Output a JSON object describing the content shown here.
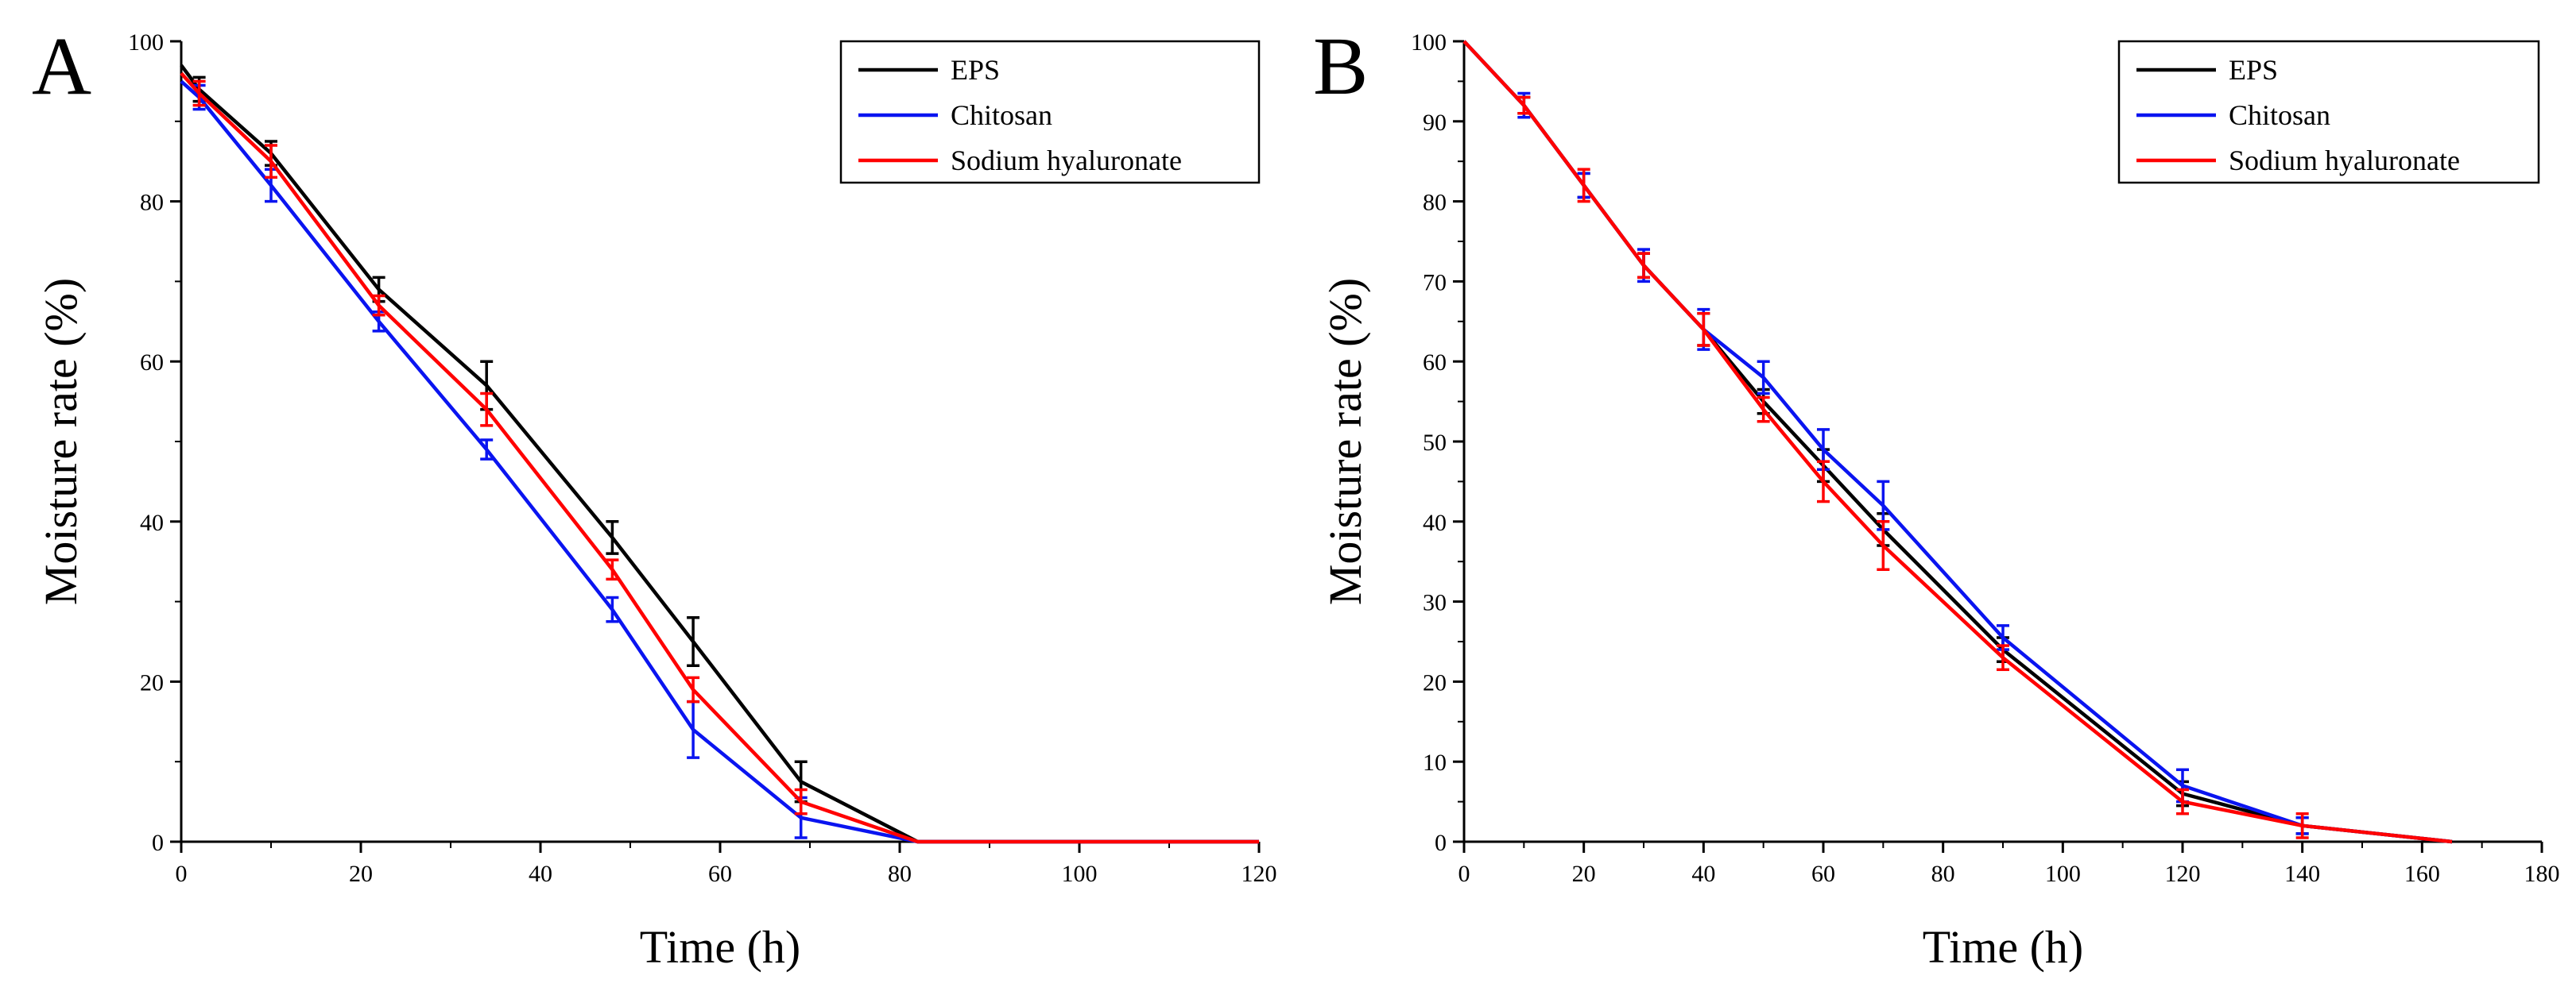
{
  "colors": {
    "EPS": "#000000",
    "Chitosan": "#0a14f0",
    "Sodium hyaluronate": "#ff0000"
  },
  "chart_data": [
    {
      "type": "line",
      "panel": "A",
      "xlabel": "Time (h)",
      "ylabel": "Moisture rate (%)",
      "xlim": [
        0,
        120
      ],
      "ylim": [
        0,
        100
      ],
      "xticks": [
        0,
        20,
        40,
        60,
        80,
        100,
        120
      ],
      "yticks": [
        0,
        20,
        40,
        60,
        80,
        100
      ],
      "legend_position": "top-right",
      "series": [
        {
          "name": "EPS",
          "x": [
            0,
            2,
            10,
            22,
            34,
            48,
            57,
            69,
            82,
            120
          ],
          "y": [
            97,
            94,
            86,
            69,
            57,
            38,
            25,
            7.5,
            0,
            0
          ],
          "err": [
            0,
            1.5,
            1.5,
            1.5,
            3,
            2,
            3,
            2.5,
            0,
            0
          ]
        },
        {
          "name": "Chitosan",
          "x": [
            0,
            2,
            10,
            22,
            34,
            48,
            57,
            69,
            82,
            120
          ],
          "y": [
            95,
            93,
            82,
            65,
            49,
            29,
            14,
            3,
            0,
            0
          ],
          "err": [
            0,
            1.5,
            2,
            1.2,
            1.2,
            1.5,
            3.5,
            2.5,
            0,
            0
          ]
        },
        {
          "name": "Sodium hyaluronate",
          "x": [
            0,
            2,
            10,
            22,
            34,
            48,
            57,
            69,
            82,
            120
          ],
          "y": [
            96,
            93.5,
            85,
            67,
            54,
            34,
            19,
            5,
            0,
            0
          ],
          "err": [
            0,
            1.5,
            2,
            1.2,
            2,
            1.2,
            1.5,
            1.5,
            0,
            0
          ]
        }
      ]
    },
    {
      "type": "line",
      "panel": "B",
      "xlabel": "Time (h)",
      "ylabel": "Moisture rate (%)",
      "xlim": [
        0,
        180
      ],
      "ylim": [
        0,
        100
      ],
      "xticks": [
        0,
        20,
        40,
        60,
        80,
        100,
        120,
        140,
        160,
        180
      ],
      "yticks": [
        0,
        10,
        20,
        30,
        40,
        50,
        60,
        70,
        80,
        90,
        100
      ],
      "legend_position": "top-right",
      "series": [
        {
          "name": "EPS",
          "x": [
            0,
            10,
            20,
            30,
            40,
            50,
            60,
            70,
            90,
            120,
            140,
            165
          ],
          "y": [
            100,
            92,
            82,
            72,
            64,
            55,
            47,
            39,
            24,
            6,
            2,
            0
          ],
          "err": [
            0,
            1,
            1.5,
            1.5,
            2,
            1.5,
            2,
            2,
            1.5,
            1.5,
            1,
            0
          ]
        },
        {
          "name": "Chitosan",
          "x": [
            0,
            10,
            20,
            30,
            40,
            50,
            60,
            70,
            90,
            120,
            140,
            165
          ],
          "y": [
            100,
            92,
            82,
            72,
            64,
            58,
            49,
            42,
            25.5,
            7,
            2,
            0
          ],
          "err": [
            0,
            1.5,
            1.5,
            2,
            2.5,
            2,
            2.5,
            3,
            1.5,
            2,
            1,
            0
          ]
        },
        {
          "name": "Sodium hyaluronate",
          "x": [
            0,
            10,
            20,
            30,
            40,
            50,
            60,
            70,
            90,
            120,
            140,
            165
          ],
          "y": [
            100,
            92,
            82,
            72,
            64,
            54,
            45,
            37,
            23,
            5,
            2,
            0
          ],
          "err": [
            0,
            1,
            2,
            1.5,
            2,
            1.5,
            2.5,
            3,
            1.5,
            1.5,
            1.5,
            0
          ]
        }
      ]
    }
  ]
}
